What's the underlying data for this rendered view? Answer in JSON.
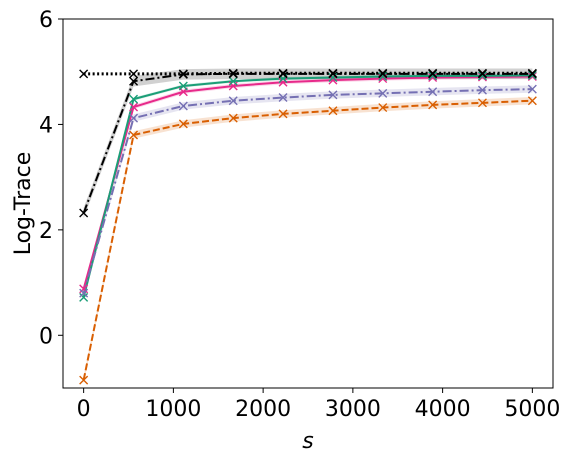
{
  "chart_data": {
    "type": "line",
    "title": "",
    "xlabel": "s",
    "ylabel": "Log-Trace",
    "xlim": [
      -230,
      5230
    ],
    "ylim": [
      -1,
      6
    ],
    "xticks": [
      0,
      1000,
      2000,
      3000,
      4000,
      5000
    ],
    "xtick_labels": [
      "0",
      "1000",
      "2000",
      "3000",
      "4000",
      "5000"
    ],
    "yticks": [
      0,
      2,
      4,
      6
    ],
    "ytick_labels": [
      "0",
      "2",
      "4",
      "6"
    ],
    "grid": false,
    "legend": "none",
    "x": [
      0,
      556,
      1111,
      1667,
      2222,
      2778,
      3333,
      3889,
      4444,
      5000
    ],
    "series": [
      {
        "color": "#e7298a",
        "dash": "solid",
        "band": 0.04,
        "values": [
          0.88,
          4.33,
          4.62,
          4.73,
          4.8,
          4.84,
          4.87,
          4.89,
          4.9,
          4.91
        ]
      },
      {
        "color": "#1b9e77",
        "dash": "solid",
        "band": 0.03,
        "values": [
          0.72,
          4.48,
          4.73,
          4.82,
          4.87,
          4.89,
          4.91,
          4.92,
          4.92,
          4.93
        ]
      },
      {
        "color": "#7570b3",
        "dash": "dashdot",
        "band": 0.07,
        "values": [
          0.8,
          4.12,
          4.35,
          4.45,
          4.51,
          4.56,
          4.59,
          4.62,
          4.65,
          4.67
        ]
      },
      {
        "color": "#d95f02",
        "dash": "dashed",
        "band": 0.07,
        "values": [
          -0.85,
          3.8,
          4.01,
          4.12,
          4.2,
          4.26,
          4.32,
          4.37,
          4.41,
          4.45
        ]
      },
      {
        "color": "#000000",
        "dash": "dashdot",
        "band": 0.1,
        "values": [
          2.32,
          4.82,
          4.95,
          4.96,
          4.96,
          4.96,
          4.96,
          4.96,
          4.96,
          4.96
        ]
      },
      {
        "color": "#000000",
        "dash": "dotted",
        "band": 0.0,
        "values": [
          4.96,
          4.96,
          4.96,
          4.97,
          4.97,
          4.97,
          4.97,
          4.97,
          4.97,
          4.97
        ]
      }
    ]
  }
}
